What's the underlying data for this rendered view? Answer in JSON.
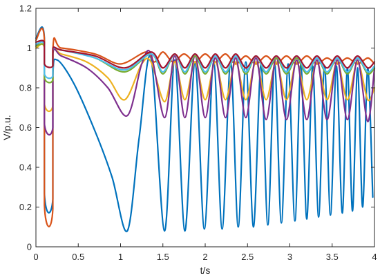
{
  "chart_data": {
    "type": "line",
    "title": "",
    "xlabel": "t/s",
    "ylabel": "V/p.u.",
    "xlim": [
      0,
      4
    ],
    "ylim": [
      0,
      1.2
    ],
    "xticks": [
      0,
      0.5,
      1,
      1.5,
      2,
      2.5,
      3,
      3.5,
      4
    ],
    "xtick_labels": [
      "0",
      "0.5",
      "1",
      "1.5",
      "2",
      "2.5",
      "3",
      "3.5",
      "4"
    ],
    "yticks": [
      0,
      0.2,
      0.4,
      0.6,
      0.8,
      1,
      1.2
    ],
    "ytick_labels": [
      "0",
      "0.2",
      "0.4",
      "0.6",
      "0.8",
      "1",
      "1.2"
    ],
    "grid": false,
    "legend": "none",
    "series": [
      {
        "color": "#0072BD",
        "x": [
          0,
          0.1,
          0.1,
          0.2,
          0.2,
          0.25,
          0.45,
          0.7,
          0.9,
          1.08,
          1.22,
          1.36,
          1.52,
          1.64,
          1.76,
          1.88,
          1.99,
          2.1,
          2.2,
          2.3,
          2.39,
          2.48,
          2.57,
          2.66,
          2.74,
          2.82,
          2.9,
          2.98,
          3.06,
          3.13,
          3.2,
          3.27,
          3.34,
          3.41,
          3.48,
          3.55,
          3.62,
          3.68,
          3.74,
          3.8,
          3.86,
          3.92,
          3.98
        ],
        "y": [
          1.05,
          1.05,
          0.27,
          0.24,
          0.85,
          0.94,
          0.82,
          0.58,
          0.35,
          0.08,
          0.55,
          0.95,
          0.08,
          0.94,
          0.08,
          0.93,
          0.09,
          0.93,
          0.09,
          0.93,
          0.1,
          0.93,
          0.1,
          0.92,
          0.11,
          0.92,
          0.12,
          0.92,
          0.13,
          0.92,
          0.14,
          0.91,
          0.15,
          0.91,
          0.16,
          0.91,
          0.17,
          0.9,
          0.18,
          0.9,
          0.2,
          0.9,
          0.25
        ]
      },
      {
        "color": "#D95319",
        "x": [
          0,
          0.1,
          0.1,
          0.2,
          0.2,
          0.3,
          0.7,
          1.0,
          1.3,
          1.4,
          1.5,
          1.62,
          1.75,
          1.88,
          2.0,
          2.12,
          2.24,
          2.36,
          2.48,
          2.6,
          2.72,
          2.84,
          2.96,
          3.08,
          3.2,
          3.32,
          3.44,
          3.56,
          3.68,
          3.8,
          3.92,
          4.0
        ],
        "y": [
          1.04,
          1.04,
          0.21,
          0.19,
          0.99,
          1.0,
          0.97,
          0.92,
          0.98,
          0.93,
          0.98,
          0.93,
          0.97,
          0.93,
          0.97,
          0.93,
          0.97,
          0.92,
          0.96,
          0.92,
          0.96,
          0.92,
          0.96,
          0.92,
          0.96,
          0.92,
          0.95,
          0.92,
          0.95,
          0.92,
          0.95,
          0.92
        ]
      },
      {
        "color": "#EDB120",
        "x": [
          0,
          0.1,
          0.1,
          0.2,
          0.2,
          0.3,
          0.6,
          0.85,
          1.05,
          1.25,
          1.36,
          1.52,
          1.64,
          1.76,
          1.88,
          2.0,
          2.12,
          2.24,
          2.36,
          2.48,
          2.6,
          2.72,
          2.84,
          2.96,
          3.08,
          3.2,
          3.32,
          3.44,
          3.56,
          3.68,
          3.8,
          3.92,
          4.0
        ],
        "y": [
          1.0,
          1.0,
          0.72,
          0.71,
          0.98,
          0.97,
          0.93,
          0.85,
          0.74,
          0.92,
          0.93,
          0.73,
          0.93,
          0.74,
          0.93,
          0.74,
          0.93,
          0.74,
          0.93,
          0.74,
          0.93,
          0.74,
          0.93,
          0.74,
          0.93,
          0.74,
          0.93,
          0.74,
          0.93,
          0.74,
          0.93,
          0.74,
          0.8
        ]
      },
      {
        "color": "#7E2F8E",
        "x": [
          0,
          0.1,
          0.1,
          0.2,
          0.2,
          0.3,
          0.6,
          0.85,
          1.08,
          1.25,
          1.36,
          1.52,
          1.64,
          1.76,
          1.88,
          2.0,
          2.12,
          2.24,
          2.36,
          2.48,
          2.6,
          2.72,
          2.84,
          2.96,
          3.08,
          3.2,
          3.32,
          3.44,
          3.56,
          3.68,
          3.8,
          3.92,
          4.0
        ],
        "y": [
          1.01,
          1.01,
          0.62,
          0.6,
          0.97,
          0.96,
          0.9,
          0.8,
          0.66,
          0.92,
          0.97,
          0.65,
          0.96,
          0.65,
          0.96,
          0.65,
          0.95,
          0.65,
          0.95,
          0.65,
          0.95,
          0.64,
          0.95,
          0.64,
          0.94,
          0.64,
          0.94,
          0.64,
          0.94,
          0.64,
          0.94,
          0.63,
          0.9
        ]
      },
      {
        "color": "#77AC30",
        "x": [
          0,
          0.1,
          0.1,
          0.2,
          0.2,
          0.3,
          0.7,
          1.05,
          1.36,
          1.5,
          1.64,
          1.76,
          1.88,
          2.0,
          2.12,
          2.24,
          2.36,
          2.48,
          2.6,
          2.72,
          2.84,
          2.96,
          3.08,
          3.2,
          3.32,
          3.44,
          3.56,
          3.68,
          3.8,
          3.92,
          4.0
        ],
        "y": [
          1.01,
          1.01,
          0.85,
          0.84,
          0.99,
          0.99,
          0.95,
          0.88,
          0.97,
          0.87,
          0.97,
          0.87,
          0.96,
          0.87,
          0.96,
          0.87,
          0.96,
          0.87,
          0.96,
          0.87,
          0.95,
          0.87,
          0.95,
          0.87,
          0.95,
          0.87,
          0.95,
          0.87,
          0.95,
          0.87,
          0.9
        ]
      },
      {
        "color": "#4DBEEE",
        "x": [
          0,
          0.1,
          0.1,
          0.2,
          0.2,
          0.3,
          0.7,
          1.05,
          1.36,
          1.5,
          1.64,
          1.76,
          1.88,
          2.0,
          2.12,
          2.24,
          2.36,
          2.48,
          2.6,
          2.72,
          2.84,
          2.96,
          3.08,
          3.2,
          3.32,
          3.44,
          3.56,
          3.68,
          3.8,
          3.92,
          4.0
        ],
        "y": [
          1.02,
          1.02,
          0.87,
          0.86,
          0.99,
          0.99,
          0.95,
          0.89,
          0.97,
          0.88,
          0.97,
          0.88,
          0.97,
          0.88,
          0.96,
          0.88,
          0.96,
          0.88,
          0.96,
          0.88,
          0.96,
          0.88,
          0.96,
          0.88,
          0.95,
          0.88,
          0.95,
          0.88,
          0.95,
          0.88,
          0.91
        ]
      },
      {
        "color": "#A2142F",
        "x": [
          0,
          0.1,
          0.1,
          0.2,
          0.2,
          0.3,
          0.7,
          1.05,
          1.36,
          1.5,
          1.64,
          1.76,
          1.88,
          2.0,
          2.12,
          2.24,
          2.36,
          2.48,
          2.6,
          2.72,
          2.84,
          2.96,
          3.08,
          3.2,
          3.32,
          3.44,
          3.56,
          3.68,
          3.8,
          3.92,
          4.0
        ],
        "y": [
          1.03,
          1.03,
          0.92,
          0.91,
          1.0,
          0.99,
          0.96,
          0.9,
          0.98,
          0.9,
          0.97,
          0.9,
          0.97,
          0.9,
          0.97,
          0.9,
          0.97,
          0.9,
          0.96,
          0.9,
          0.96,
          0.9,
          0.96,
          0.9,
          0.96,
          0.9,
          0.96,
          0.9,
          0.96,
          0.9,
          0.93
        ]
      }
    ]
  }
}
